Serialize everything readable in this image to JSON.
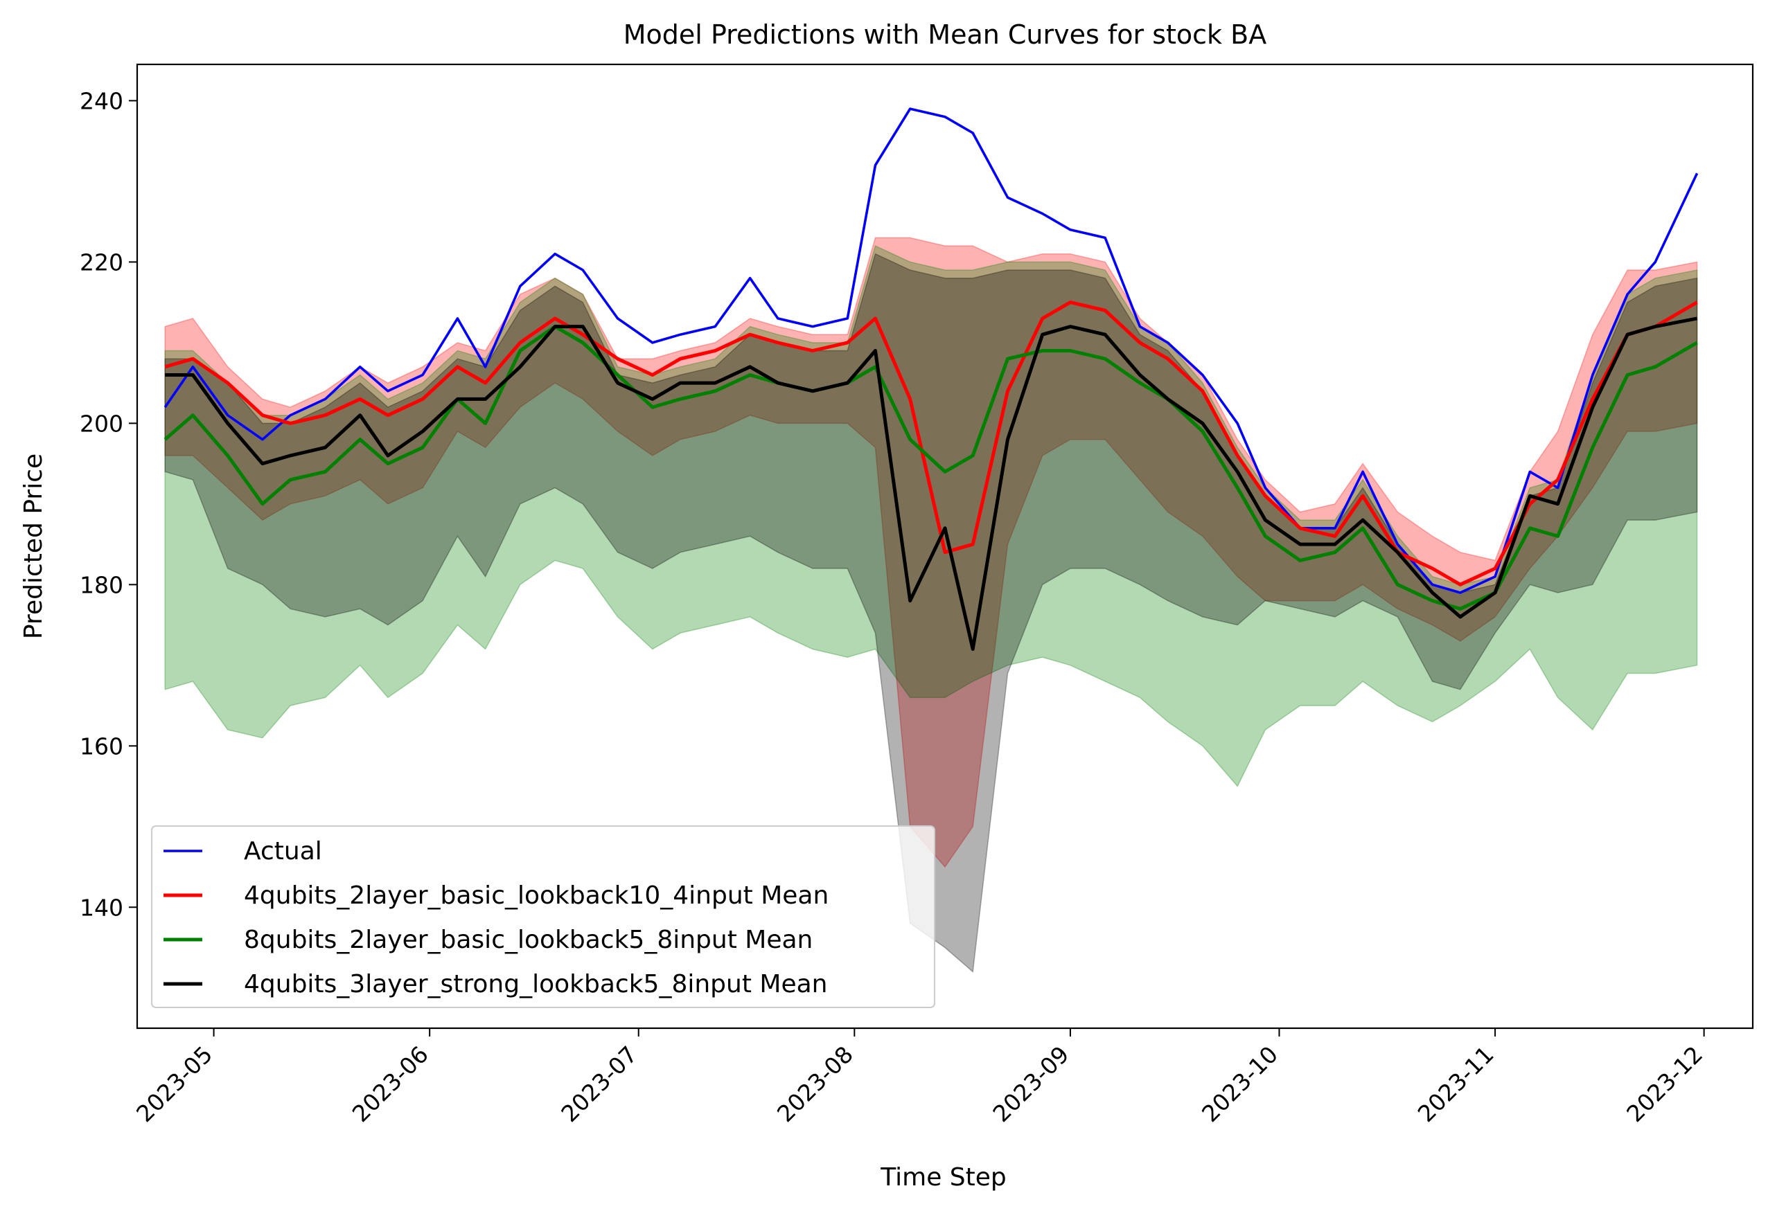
{
  "chart_data": {
    "type": "line",
    "title": "Model Predictions with Mean Curves for stock BA",
    "xlabel": "Time Step",
    "ylabel": "Predicted Price",
    "xlim": [
      "2023-04-20",
      "2023-12-08"
    ],
    "ylim": [
      125,
      244.5
    ],
    "x_ticks": [
      "2023-05-01",
      "2023-06-01",
      "2023-07-01",
      "2023-08-01",
      "2023-09-01",
      "2023-10-01",
      "2023-11-01",
      "2023-12-01"
    ],
    "x_tick_labels": [
      "2023-05",
      "2023-06",
      "2023-07",
      "2023-08",
      "2023-09",
      "2023-10",
      "2023-11",
      "2023-12"
    ],
    "y_ticks": [
      140,
      160,
      180,
      200,
      220,
      240
    ],
    "grid": false,
    "legend_position": "lower left",
    "x": [
      "2023-04-24",
      "2023-04-28",
      "2023-05-03",
      "2023-05-08",
      "2023-05-12",
      "2023-05-17",
      "2023-05-22",
      "2023-05-26",
      "2023-05-31",
      "2023-06-05",
      "2023-06-09",
      "2023-06-14",
      "2023-06-19",
      "2023-06-23",
      "2023-06-28",
      "2023-07-03",
      "2023-07-07",
      "2023-07-12",
      "2023-07-17",
      "2023-07-21",
      "2023-07-26",
      "2023-07-31",
      "2023-08-04",
      "2023-08-09",
      "2023-08-14",
      "2023-08-18",
      "2023-08-23",
      "2023-08-28",
      "2023-09-01",
      "2023-09-06",
      "2023-09-11",
      "2023-09-15",
      "2023-09-20",
      "2023-09-25",
      "2023-09-29",
      "2023-10-04",
      "2023-10-09",
      "2023-10-13",
      "2023-10-18",
      "2023-10-23",
      "2023-10-27",
      "2023-11-01",
      "2023-11-06",
      "2023-11-10",
      "2023-11-15",
      "2023-11-20",
      "2023-11-24",
      "2023-11-30"
    ],
    "series": [
      {
        "name": "Actual",
        "color": "#0000ff",
        "values": [
          202,
          207,
          201,
          198,
          201,
          203,
          207,
          204,
          206,
          213,
          207,
          217,
          221,
          219,
          213,
          210,
          211,
          212,
          218,
          213,
          212,
          213,
          232,
          239,
          238,
          236,
          228,
          226,
          224,
          223,
          212,
          210,
          206,
          200,
          192,
          187,
          187,
          194,
          185,
          180,
          179,
          181,
          194,
          192,
          206,
          216,
          220,
          231
        ]
      },
      {
        "name": "4qubits_2layer_basic_lookback10_4input Mean",
        "color": "#ff0000",
        "values": [
          207,
          208,
          205,
          201,
          200,
          201,
          203,
          201,
          203,
          207,
          205,
          210,
          213,
          211,
          208,
          206,
          208,
          209,
          211,
          210,
          209,
          210,
          213,
          203,
          184,
          185,
          204,
          213,
          215,
          214,
          210,
          208,
          204,
          196,
          191,
          187,
          186,
          191,
          184,
          182,
          180,
          182,
          190,
          193,
          203,
          211,
          212,
          215
        ]
      },
      {
        "name": "8qubits_2layer_basic_lookback5_8input Mean",
        "color": "#008000",
        "values": [
          198,
          201,
          196,
          190,
          193,
          194,
          198,
          195,
          197,
          203,
          200,
          209,
          212,
          210,
          206,
          202,
          203,
          204,
          206,
          205,
          204,
          205,
          207,
          198,
          194,
          196,
          208,
          209,
          209,
          208,
          205,
          203,
          199,
          192,
          186,
          183,
          184,
          187,
          180,
          178,
          177,
          179,
          187,
          186,
          197,
          206,
          207,
          210
        ]
      },
      {
        "name": "4qubits_3layer_strong_lookback5_8input Mean",
        "color": "#000000",
        "values": [
          206,
          206,
          200,
          195,
          196,
          197,
          201,
          196,
          199,
          203,
          203,
          207,
          212,
          212,
          205,
          203,
          205,
          205,
          207,
          205,
          204,
          205,
          209,
          178,
          187,
          172,
          198,
          211,
          212,
          211,
          206,
          203,
          200,
          194,
          188,
          185,
          185,
          188,
          184,
          179,
          176,
          179,
          191,
          190,
          202,
          211,
          212,
          213
        ]
      }
    ],
    "bands": [
      {
        "color": "#ff0000",
        "upper": [
          212,
          213,
          207,
          203,
          202,
          204,
          207,
          205,
          207,
          210,
          209,
          216,
          218,
          216,
          208,
          208,
          209,
          210,
          213,
          212,
          211,
          211,
          223,
          223,
          222,
          222,
          220,
          221,
          221,
          220,
          213,
          210,
          206,
          198,
          193,
          189,
          190,
          195,
          189,
          186,
          184,
          183,
          194,
          199,
          211,
          219,
          219,
          220
        ],
        "lower": [
          196,
          196,
          192,
          188,
          190,
          191,
          193,
          190,
          192,
          199,
          197,
          202,
          205,
          203,
          199,
          196,
          198,
          199,
          201,
          200,
          200,
          200,
          197,
          150,
          145,
          150,
          185,
          196,
          198,
          198,
          193,
          189,
          186,
          181,
          178,
          178,
          178,
          180,
          177,
          175,
          173,
          176,
          182,
          186,
          192,
          199,
          199,
          200
        ]
      },
      {
        "color": "#008000",
        "upper": [
          209,
          209,
          205,
          201,
          201,
          203,
          206,
          203,
          205,
          209,
          208,
          215,
          218,
          216,
          207,
          206,
          207,
          208,
          212,
          211,
          210,
          210,
          222,
          220,
          219,
          219,
          220,
          220,
          220,
          219,
          212,
          210,
          205,
          197,
          192,
          188,
          188,
          193,
          186,
          181,
          180,
          181,
          192,
          193,
          206,
          216,
          218,
          219
        ],
        "lower": [
          167,
          168,
          162,
          161,
          165,
          166,
          170,
          166,
          169,
          175,
          172,
          180,
          183,
          182,
          176,
          172,
          174,
          175,
          176,
          174,
          172,
          171,
          172,
          166,
          166,
          168,
          170,
          171,
          170,
          168,
          166,
          163,
          160,
          155,
          162,
          165,
          165,
          168,
          165,
          163,
          165,
          168,
          172,
          166,
          162,
          169,
          169,
          170
        ]
      },
      {
        "color": "#000000",
        "upper": [
          208,
          208,
          205,
          200,
          200,
          202,
          205,
          202,
          204,
          208,
          207,
          214,
          217,
          215,
          206,
          205,
          206,
          207,
          211,
          210,
          209,
          209,
          221,
          219,
          218,
          218,
          219,
          219,
          219,
          218,
          211,
          209,
          204,
          196,
          191,
          187,
          187,
          192,
          185,
          180,
          179,
          180,
          191,
          192,
          205,
          215,
          217,
          218
        ],
        "lower": [
          194,
          193,
          182,
          180,
          177,
          176,
          177,
          175,
          178,
          186,
          181,
          190,
          192,
          190,
          184,
          182,
          184,
          185,
          186,
          184,
          182,
          182,
          174,
          138,
          135,
          132,
          169,
          180,
          182,
          182,
          180,
          178,
          176,
          175,
          178,
          177,
          176,
          178,
          176,
          168,
          167,
          174,
          180,
          179,
          180,
          188,
          188,
          189
        ]
      }
    ]
  }
}
